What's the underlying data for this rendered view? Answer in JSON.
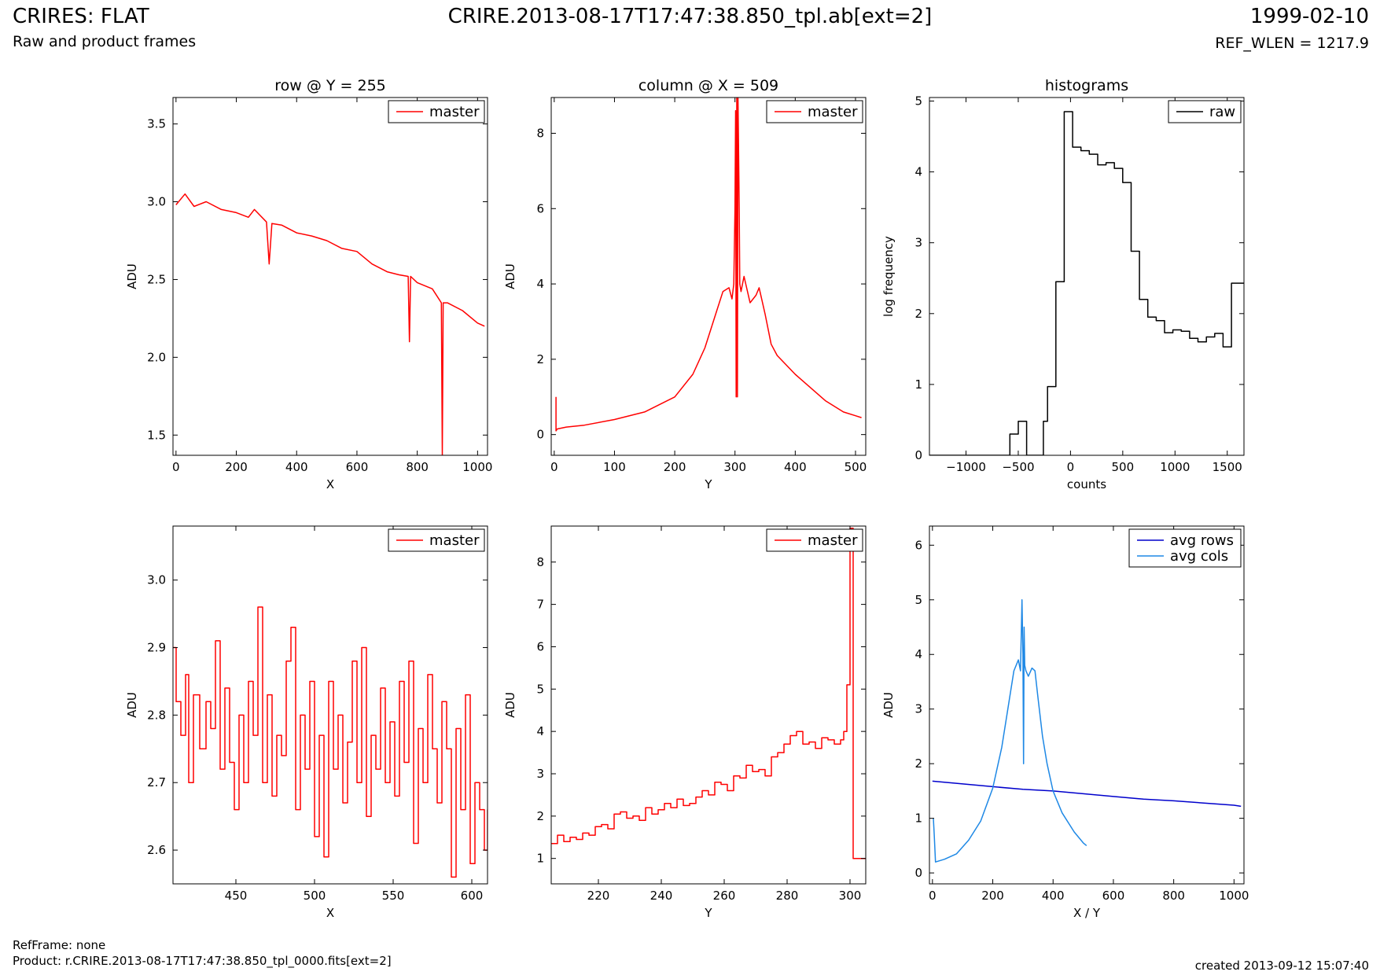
{
  "header": {
    "title": "CRIRES: FLAT",
    "subtitle": "Raw and product frames",
    "filename": "CRIRE.2013-08-17T17:47:38.850_tpl.ab[ext=2]",
    "date": "1999-02-10",
    "ref_wlen": "REF_WLEN = 1217.9"
  },
  "footer": {
    "refframe": "RefFrame: none",
    "product": "Product: r.CRIRE.2013-08-17T17:47:38.850_tpl_0000.fits[ext=2]",
    "created": "created 2013-09-12 15:07:40"
  },
  "colors": {
    "red": "#ff0000",
    "black": "#000000",
    "avg_rows": "#0000cc",
    "avg_cols": "#1e88e5"
  },
  "chart_data": [
    {
      "id": "row",
      "type": "line",
      "title": "row @ Y = 255",
      "xlabel": "X",
      "ylabel": "ADU",
      "xlim": [
        -10,
        1033
      ],
      "ylim": [
        1.37,
        3.67
      ],
      "xticks": [
        0,
        200,
        400,
        600,
        800,
        1000
      ],
      "yticks": [
        1.5,
        2.0,
        2.5,
        3.0,
        3.5
      ],
      "ytick_labels": [
        "1.5",
        "2.0",
        "2.5",
        "3.0",
        "3.5"
      ],
      "legend": "top-right",
      "series": [
        {
          "name": "master",
          "color": "#ff0000",
          "x": [
            0,
            30,
            60,
            100,
            150,
            200,
            240,
            260,
            300,
            309,
            318,
            350,
            400,
            450,
            500,
            550,
            600,
            650,
            700,
            740,
            770,
            774,
            778,
            800,
            850,
            880,
            883,
            886,
            900,
            950,
            1000,
            1023
          ],
          "y": [
            2.98,
            3.05,
            2.97,
            3.0,
            2.95,
            2.93,
            2.9,
            2.95,
            2.87,
            2.6,
            2.86,
            2.85,
            2.8,
            2.78,
            2.75,
            2.7,
            2.68,
            2.6,
            2.55,
            2.53,
            2.52,
            2.1,
            2.52,
            2.48,
            2.44,
            2.35,
            1.37,
            2.35,
            2.35,
            2.3,
            2.22,
            2.2
          ]
        }
      ]
    },
    {
      "id": "column",
      "type": "line",
      "title": "column @ X = 509",
      "xlabel": "Y",
      "ylabel": "ADU",
      "xlim": [
        -5,
        517
      ],
      "ylim": [
        -0.55,
        8.95
      ],
      "xticks": [
        0,
        100,
        200,
        300,
        400,
        500
      ],
      "yticks": [
        0,
        2,
        4,
        6,
        8
      ],
      "ytick_labels": [
        "0",
        "2",
        "4",
        "6",
        "8"
      ],
      "legend": "top-right",
      "series": [
        {
          "name": "master",
          "color": "#ff0000",
          "x": [
            3,
            3,
            5,
            20,
            50,
            100,
            150,
            200,
            230,
            250,
            270,
            280,
            290,
            295,
            298,
            300,
            301,
            302,
            303,
            304,
            305,
            307,
            308,
            310,
            315,
            325,
            335,
            340,
            350,
            360,
            370,
            400,
            450,
            480,
            500,
            510
          ],
          "y": [
            1.0,
            0.1,
            0.15,
            0.2,
            0.25,
            0.4,
            0.6,
            1.0,
            1.6,
            2.3,
            3.3,
            3.8,
            3.9,
            3.6,
            4.0,
            6.0,
            8.6,
            1.0,
            9.0,
            1.0,
            9.0,
            6.0,
            4.0,
            3.8,
            4.2,
            3.5,
            3.7,
            3.9,
            3.2,
            2.4,
            2.1,
            1.6,
            0.9,
            0.6,
            0.5,
            0.45
          ]
        }
      ]
    },
    {
      "id": "hist",
      "type": "line",
      "title": "histograms",
      "xlabel": "counts",
      "ylabel": "log frequency",
      "xlim": [
        -1350,
        1660
      ],
      "ylim": [
        0,
        5.05
      ],
      "xticks": [
        -1000,
        -500,
        0,
        500,
        1000,
        1500
      ],
      "xtick_labels": [
        "−1000",
        "−500",
        "0",
        "500",
        "1000",
        "1500"
      ],
      "yticks": [
        0,
        1,
        2,
        3,
        4,
        5
      ],
      "ytick_labels": [
        "0",
        "1",
        "2",
        "3",
        "4",
        "5"
      ],
      "legend": "top-right",
      "series": [
        {
          "name": "raw",
          "color": "#000000",
          "step": true,
          "x": [
            -1350,
            -580,
            -580,
            -500,
            -500,
            -420,
            -420,
            -260,
            -260,
            -220,
            -220,
            -140,
            -140,
            -60,
            -60,
            20,
            20,
            100,
            100,
            180,
            180,
            260,
            260,
            340,
            340,
            420,
            420,
            500,
            500,
            580,
            580,
            660,
            660,
            740,
            740,
            820,
            820,
            900,
            900,
            980,
            980,
            1060,
            1060,
            1140,
            1140,
            1220,
            1220,
            1300,
            1300,
            1380,
            1380,
            1460,
            1460,
            1540,
            1540,
            1580,
            1580,
            1660
          ],
          "y": [
            0,
            0,
            0.3,
            0.3,
            0.48,
            0.48,
            0,
            0,
            0.48,
            0.48,
            0.97,
            0.97,
            2.45,
            2.45,
            4.85,
            4.85,
            4.35,
            4.35,
            4.3,
            4.3,
            4.25,
            4.25,
            4.1,
            4.1,
            4.13,
            4.13,
            4.05,
            4.05,
            3.85,
            3.85,
            2.88,
            2.88,
            2.2,
            2.2,
            1.95,
            1.95,
            1.9,
            1.9,
            1.73,
            1.73,
            1.77,
            1.77,
            1.75,
            1.75,
            1.65,
            1.65,
            1.6,
            1.6,
            1.67,
            1.67,
            1.72,
            1.72,
            1.53,
            1.53,
            2.43,
            2.43,
            2.43,
            2.43
          ]
        }
      ]
    },
    {
      "id": "row-zoom",
      "type": "line",
      "title": "",
      "xlabel": "X",
      "ylabel": "ADU",
      "xlim": [
        410,
        610
      ],
      "ylim": [
        2.55,
        3.08
      ],
      "xticks": [
        450,
        500,
        550,
        600
      ],
      "yticks": [
        2.6,
        2.7,
        2.8,
        2.9,
        3.0
      ],
      "ytick_labels": [
        "2.6",
        "2.7",
        "2.8",
        "2.9",
        "3.0"
      ],
      "legend": "top-right",
      "series": [
        {
          "name": "master",
          "color": "#ff0000",
          "step": true,
          "x": [
            410,
            412,
            415,
            418,
            420,
            423,
            427,
            431,
            434,
            437,
            440,
            443,
            446,
            449,
            452,
            455,
            458,
            461,
            464,
            467,
            470,
            473,
            476,
            479,
            482,
            485,
            488,
            491,
            494,
            497,
            500,
            503,
            506,
            509,
            512,
            515,
            518,
            521,
            524,
            527,
            530,
            533,
            536,
            539,
            542,
            545,
            548,
            551,
            554,
            557,
            560,
            563,
            566,
            569,
            572,
            575,
            578,
            581,
            584,
            587,
            590,
            593,
            596,
            599,
            602,
            605,
            608,
            610
          ],
          "y": [
            2.9,
            2.82,
            2.77,
            2.86,
            2.7,
            2.83,
            2.75,
            2.82,
            2.78,
            2.91,
            2.72,
            2.84,
            2.73,
            2.66,
            2.8,
            2.7,
            2.85,
            2.77,
            2.96,
            2.7,
            2.83,
            2.68,
            2.77,
            2.74,
            2.88,
            2.93,
            2.66,
            2.8,
            2.72,
            2.85,
            2.62,
            2.77,
            2.59,
            2.85,
            2.72,
            2.8,
            2.67,
            2.76,
            2.88,
            2.7,
            2.9,
            2.65,
            2.77,
            2.72,
            2.84,
            2.7,
            2.79,
            2.68,
            2.85,
            2.73,
            2.88,
            2.61,
            2.78,
            2.7,
            2.86,
            2.75,
            2.67,
            2.82,
            2.75,
            2.56,
            2.78,
            2.66,
            2.83,
            2.58,
            2.7,
            2.66,
            2.6,
            2.66
          ]
        }
      ]
    },
    {
      "id": "column-zoom",
      "type": "line",
      "title": "",
      "xlabel": "Y",
      "ylabel": "ADU",
      "xlim": [
        205,
        305
      ],
      "ylim": [
        0.4,
        8.85
      ],
      "xticks": [
        220,
        240,
        260,
        280,
        300
      ],
      "yticks": [
        1,
        2,
        3,
        4,
        5,
        6,
        7,
        8
      ],
      "ytick_labels": [
        "1",
        "2",
        "3",
        "4",
        "5",
        "6",
        "7",
        "8"
      ],
      "legend": "top-right",
      "series": [
        {
          "name": "master",
          "color": "#ff0000",
          "step": true,
          "x": [
            205,
            207,
            209,
            211,
            213,
            215,
            217,
            219,
            221,
            223,
            225,
            227,
            229,
            231,
            233,
            235,
            237,
            239,
            241,
            243,
            245,
            247,
            249,
            251,
            253,
            255,
            257,
            259,
            261,
            263,
            265,
            267,
            269,
            271,
            273,
            275,
            277,
            279,
            281,
            283,
            285,
            287,
            289,
            291,
            293,
            295,
            297,
            298,
            299,
            300,
            301,
            303,
            305
          ],
          "y": [
            1.35,
            1.55,
            1.4,
            1.5,
            1.45,
            1.6,
            1.55,
            1.75,
            1.8,
            1.7,
            2.05,
            2.1,
            1.95,
            2.0,
            1.9,
            2.2,
            2.05,
            2.15,
            2.3,
            2.2,
            2.4,
            2.25,
            2.3,
            2.45,
            2.6,
            2.5,
            2.8,
            2.75,
            2.6,
            2.95,
            2.9,
            3.2,
            3.05,
            3.1,
            2.95,
            3.4,
            3.5,
            3.7,
            3.9,
            4.0,
            3.7,
            3.75,
            3.6,
            3.85,
            3.8,
            3.7,
            3.8,
            4.0,
            5.1,
            8.8,
            1.0,
            1.0,
            1.0
          ]
        }
      ]
    },
    {
      "id": "avg",
      "type": "line",
      "title": "",
      "xlabel": "X / Y",
      "ylabel": "ADU",
      "xlim": [
        -10,
        1033
      ],
      "ylim": [
        -0.2,
        6.35
      ],
      "xticks": [
        0,
        200,
        400,
        600,
        800,
        1000
      ],
      "yticks": [
        0,
        1,
        2,
        3,
        4,
        5,
        6
      ],
      "ytick_labels": [
        "0",
        "1",
        "2",
        "3",
        "4",
        "5",
        "6"
      ],
      "legend": "top-right",
      "series": [
        {
          "name": "avg rows",
          "color": "#0000cc",
          "x": [
            0,
            100,
            200,
            300,
            400,
            500,
            600,
            700,
            800,
            900,
            1000,
            1023
          ],
          "y": [
            1.68,
            1.63,
            1.58,
            1.53,
            1.5,
            1.45,
            1.4,
            1.35,
            1.32,
            1.28,
            1.24,
            1.22
          ]
        },
        {
          "name": "avg cols",
          "color": "#1e88e5",
          "x": [
            3,
            6,
            10,
            40,
            80,
            120,
            160,
            200,
            230,
            250,
            270,
            285,
            292,
            297,
            300,
            302,
            304,
            306,
            310,
            318,
            330,
            340,
            350,
            365,
            380,
            400,
            430,
            470,
            500,
            511
          ],
          "y": [
            1.0,
            0.7,
            0.2,
            0.25,
            0.35,
            0.6,
            0.95,
            1.55,
            2.3,
            3.0,
            3.7,
            3.9,
            3.7,
            5.0,
            4.0,
            2.0,
            4.5,
            3.8,
            3.7,
            3.6,
            3.75,
            3.7,
            3.2,
            2.5,
            2.0,
            1.5,
            1.1,
            0.75,
            0.55,
            0.5
          ]
        }
      ]
    }
  ]
}
